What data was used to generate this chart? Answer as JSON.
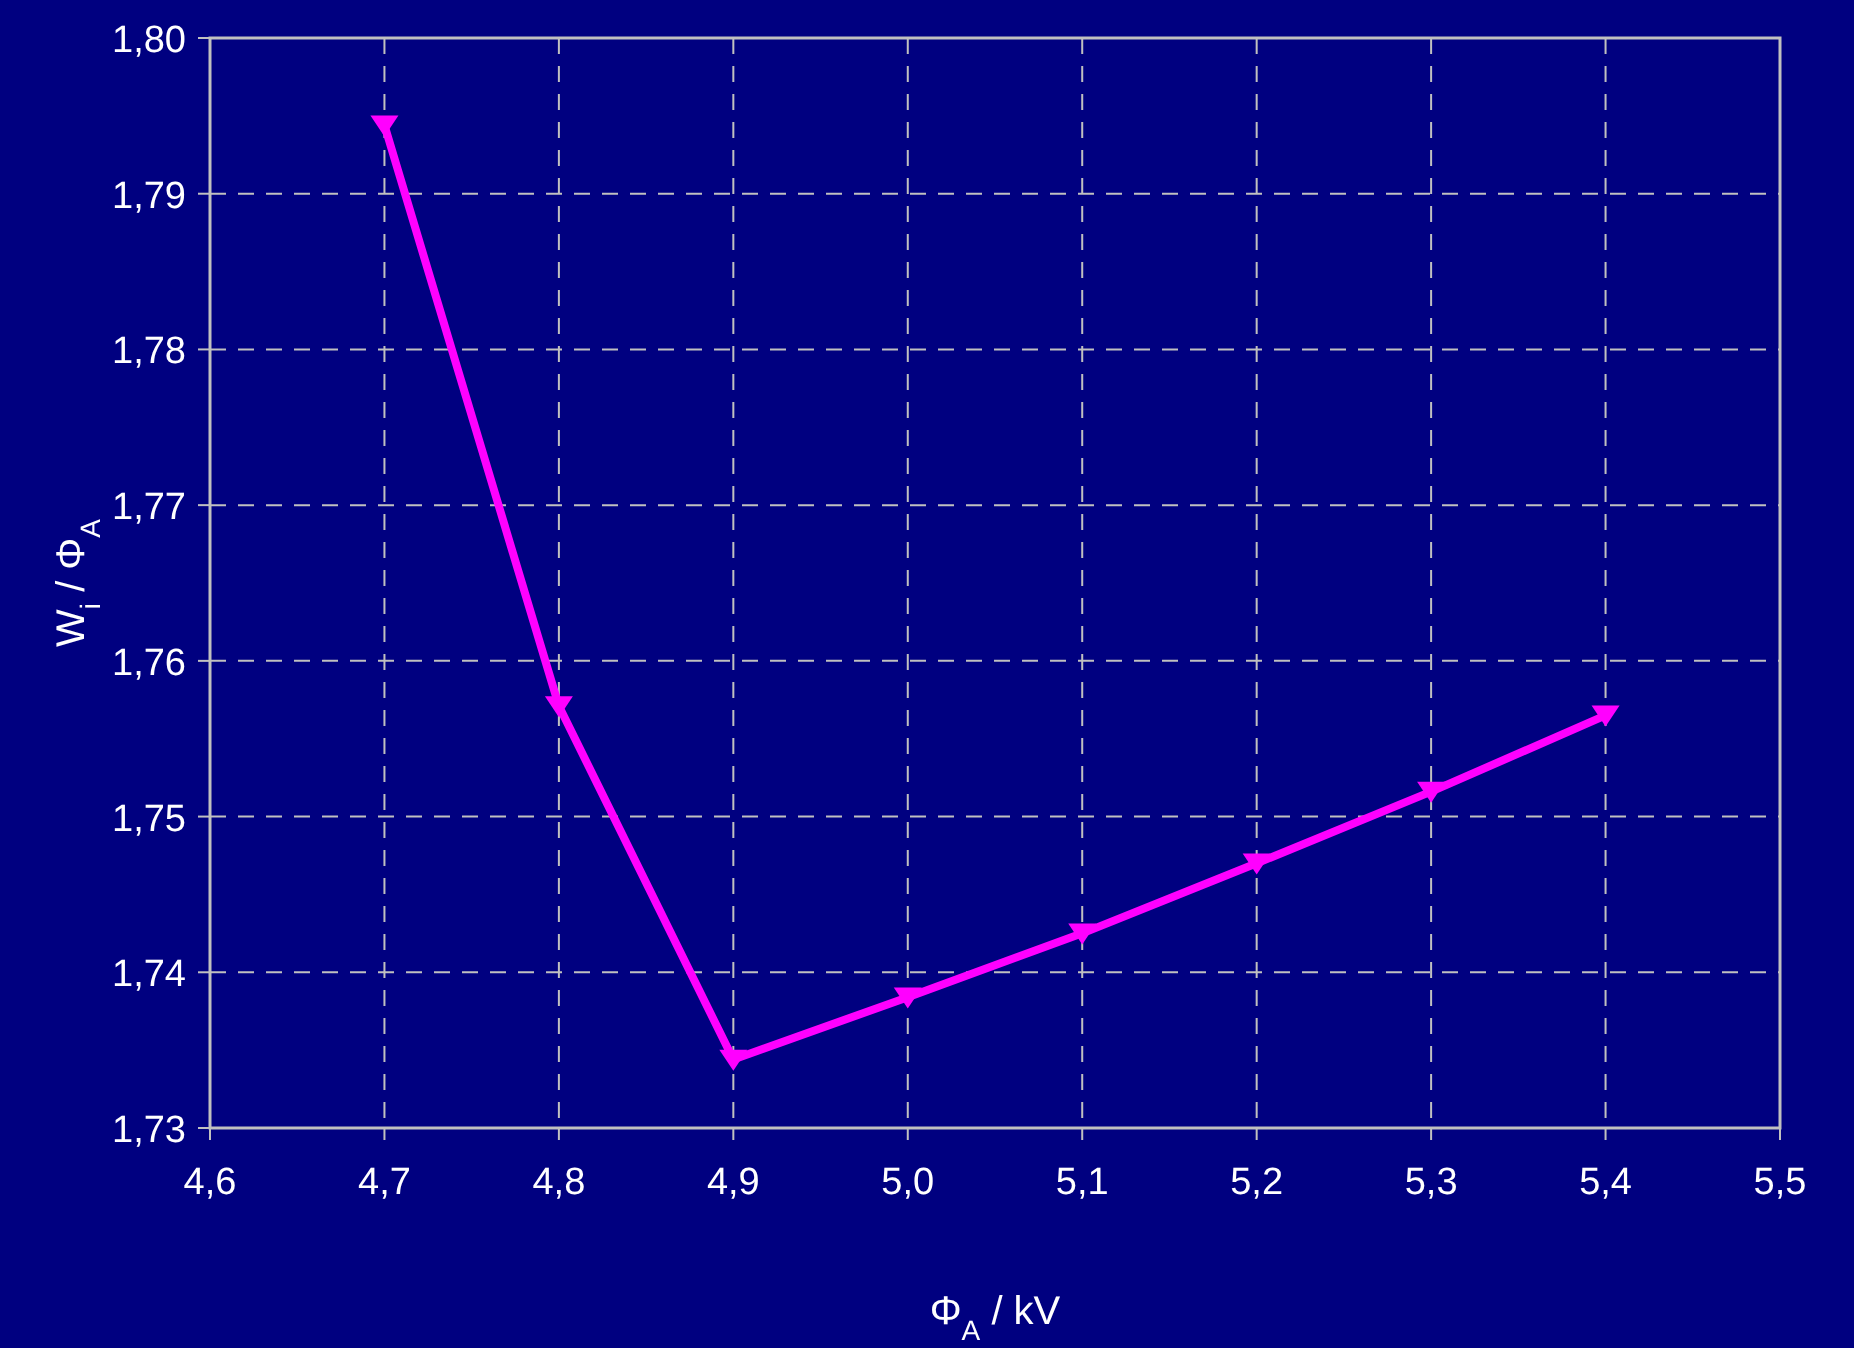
{
  "chart_data": {
    "type": "line",
    "xlabel": "Φ$_{A}$ / kV",
    "ylabel": "W$_{i}$ / Φ$_{A}$",
    "x": [
      4.7,
      4.8,
      4.9,
      5.0,
      5.1,
      5.2,
      5.3,
      5.4
    ],
    "series": [
      {
        "color": "#ff00ff",
        "values": [
          1.7944,
          1.7571,
          1.7344,
          1.7384,
          1.7425,
          1.747,
          1.7516,
          1.7565
        ]
      }
    ],
    "xlim": [
      4.6,
      5.5
    ],
    "xticks": [
      {
        "value": 4.6,
        "label": "4,6"
      },
      {
        "value": 4.7,
        "label": "4,7"
      },
      {
        "value": 4.8,
        "label": "4,8"
      },
      {
        "value": 4.9,
        "label": "4,9"
      },
      {
        "value": 5.0,
        "label": "5,0"
      },
      {
        "value": 5.1,
        "label": "5,1"
      },
      {
        "value": 5.2,
        "label": "5,2"
      },
      {
        "value": 5.3,
        "label": "5,3"
      },
      {
        "value": 5.4,
        "label": "5,4"
      },
      {
        "value": 5.5,
        "label": "5,5"
      }
    ],
    "ylim": [
      1.73,
      1.8
    ],
    "yticks": [
      {
        "value": 1.73,
        "label": "1,73"
      },
      {
        "value": 1.74,
        "label": "1,74"
      },
      {
        "value": 1.75,
        "label": "1,75"
      },
      {
        "value": 1.76,
        "label": "1,76"
      },
      {
        "value": 1.77,
        "label": "1,77"
      },
      {
        "value": 1.78,
        "label": "1,78"
      },
      {
        "value": 1.79,
        "label": "1,79"
      },
      {
        "value": 1.8,
        "label": "1,80"
      }
    ],
    "grid": true,
    "marker": "triangle",
    "line_style": "solid"
  }
}
